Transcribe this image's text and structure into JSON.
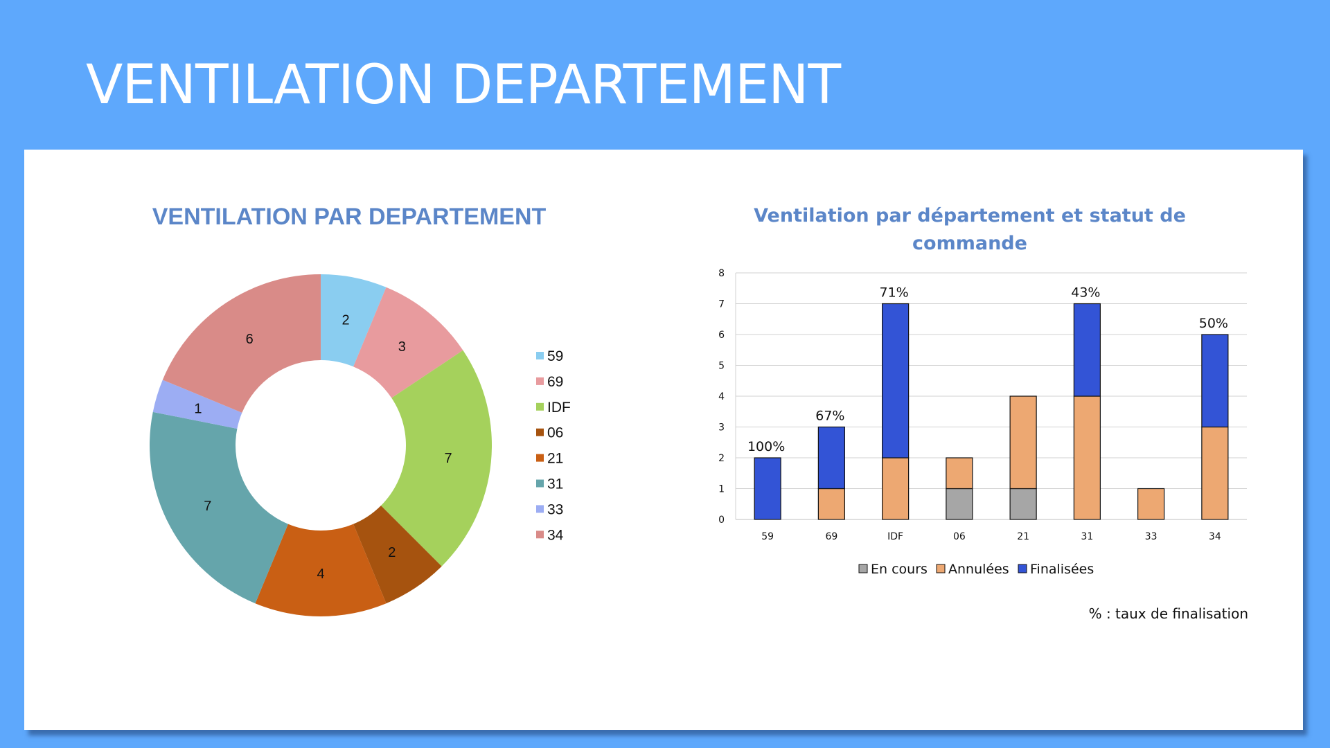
{
  "slide": {
    "title": "VENTILATION DEPARTEMENT",
    "background_color": "#5ea8fc",
    "footnote": "% : taux de finalisation"
  },
  "chart_data": [
    {
      "type": "pie",
      "title": "VENTILATION PAR DEPARTEMENT",
      "donut": true,
      "categories": [
        "59",
        "69",
        "IDF",
        "06",
        "21",
        "31",
        "33",
        "34"
      ],
      "values": [
        2,
        3,
        7,
        2,
        4,
        7,
        1,
        6
      ],
      "colors": [
        "#8acdf0",
        "#e89b9e",
        "#a5d15c",
        "#a6530f",
        "#c95f14",
        "#65a5ab",
        "#9cadf3",
        "#d98b88"
      ],
      "legend": "right"
    },
    {
      "type": "bar",
      "stacked": true,
      "title": "Ventilation par département et statut de commande",
      "categories": [
        "59",
        "69",
        "IDF",
        "06",
        "21",
        "31",
        "33",
        "34"
      ],
      "series": [
        {
          "name": "En cours",
          "values": [
            0,
            0,
            0,
            1,
            1,
            0,
            0,
            0
          ],
          "color": "#a6a6a6"
        },
        {
          "name": "Annulées",
          "values": [
            0,
            1,
            2,
            1,
            3,
            4,
            1,
            3
          ],
          "color": "#eda872"
        },
        {
          "name": "Finalisées",
          "values": [
            2,
            2,
            5,
            0,
            0,
            3,
            0,
            3
          ],
          "color": "#3354d6"
        }
      ],
      "annotations": [
        {
          "category": "59",
          "text": "100%"
        },
        {
          "category": "69",
          "text": "67%"
        },
        {
          "category": "IDF",
          "text": "71%"
        },
        {
          "category": "31",
          "text": "43%"
        },
        {
          "category": "34",
          "text": "50%"
        }
      ],
      "ylim": [
        0,
        8
      ],
      "yticks": [
        0,
        1,
        2,
        3,
        4,
        5,
        6,
        7,
        8
      ],
      "grid": true,
      "legend": "bottom"
    }
  ]
}
